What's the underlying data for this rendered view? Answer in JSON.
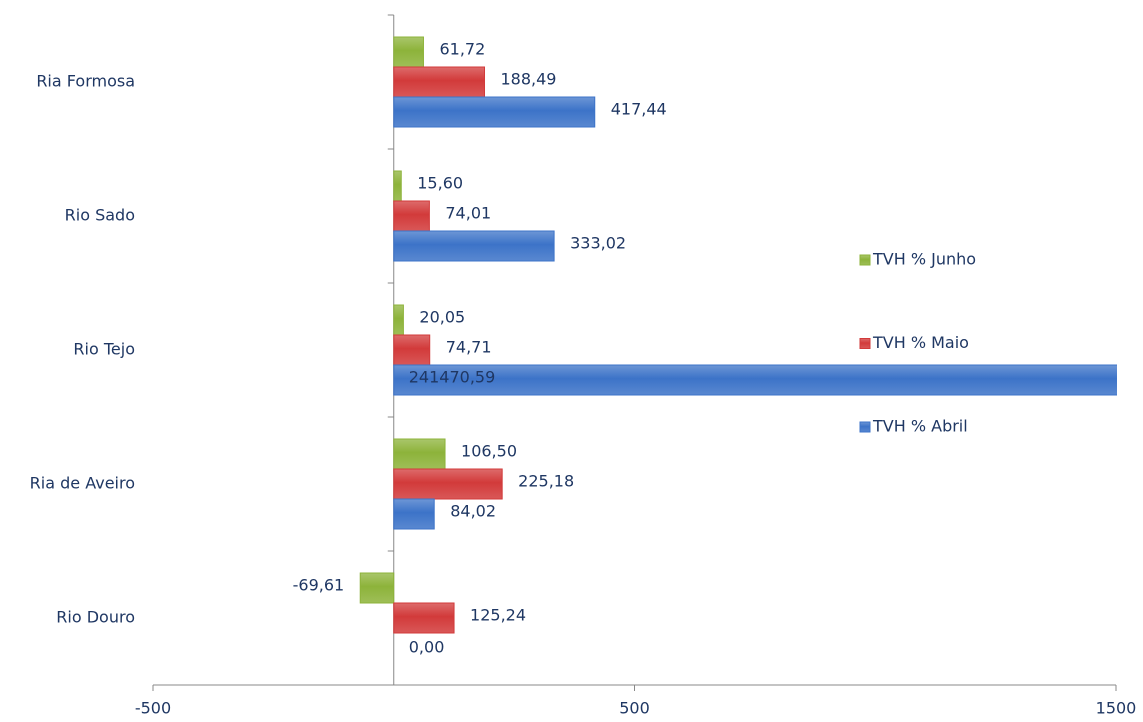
{
  "chart_data": {
    "type": "bar",
    "orientation": "horizontal",
    "categories": [
      "Ria Formosa",
      "Rio Sado",
      "Rio Tejo",
      "Ria de Aveiro",
      "Rio Douro"
    ],
    "series": [
      {
        "name": "TVH % Junho",
        "color": "#8db33a",
        "values": [
          61.72,
          15.6,
          20.05,
          106.5,
          -69.61
        ],
        "value_labels": [
          "61,72",
          "15,60",
          "20,05",
          "106,50",
          "-69,61"
        ]
      },
      {
        "name": "TVH % Maio",
        "color": "#d23a3a",
        "values": [
          188.49,
          74.01,
          74.71,
          225.18,
          125.24
        ],
        "value_labels": [
          "188,49",
          "74,01",
          "74,71",
          "225,18",
          "125,24"
        ]
      },
      {
        "name": "TVH % Abril",
        "color": "#3c73c8",
        "values": [
          417.44,
          333.02,
          241470.59,
          84.02,
          0.0
        ],
        "value_labels": [
          "417,44",
          "333,02",
          "241470,59",
          "84,02",
          "0,00"
        ]
      }
    ],
    "xlim": [
      -500,
      1500
    ],
    "xticks": [
      -500,
      500,
      1500
    ],
    "legend": "right"
  }
}
